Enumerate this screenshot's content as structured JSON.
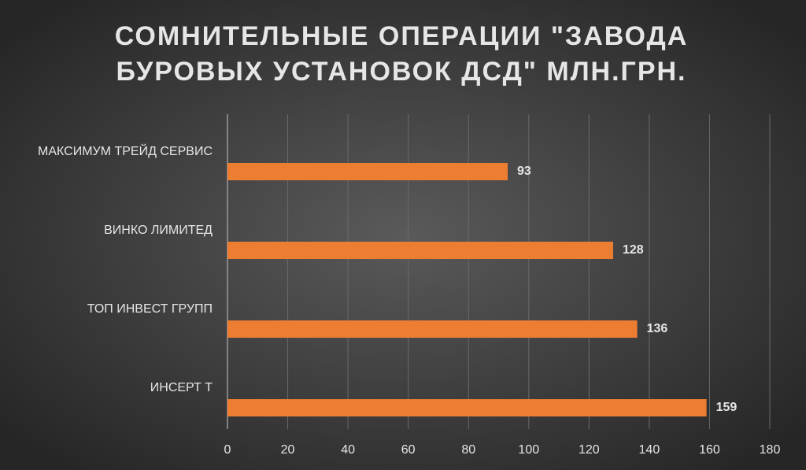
{
  "chart_data": {
    "type": "bar",
    "orientation": "horizontal",
    "title": [
      "СОМНИТЕЛЬНЫЕ ОПЕРАЦИИ \"ЗАВОДА",
      "БУРОВЫХ УСТАНОВОК ДСД\" МЛН.ГРН."
    ],
    "categories": [
      "МАКСИМУМ ТРЕЙД СЕРВИС",
      "ВИНКО ЛИМИТЕД",
      "ТОП ИНВЕСТ ГРУПП",
      "ИНСЕРТ Т"
    ],
    "values": [
      93,
      128,
      136,
      159
    ],
    "color": "#ed7d31",
    "xlim": [
      0,
      180
    ],
    "xticks": [
      0,
      20,
      40,
      60,
      80,
      100,
      120,
      140,
      160,
      180
    ],
    "grid": true
  }
}
